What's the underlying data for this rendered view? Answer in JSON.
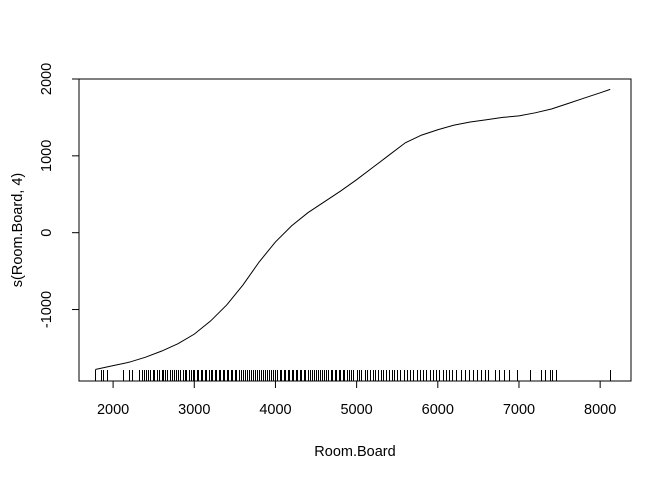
{
  "chart_data": {
    "type": "line",
    "title": "",
    "xlabel": "Room.Board",
    "ylabel": "s(Room.Board, 4)",
    "xlim": [
      1580,
      8380
    ],
    "ylim": [
      -1930,
      2000
    ],
    "x_ticks": [
      2000,
      3000,
      4000,
      5000,
      6000,
      7000,
      8000
    ],
    "x_tick_labels": [
      "2000",
      "3000",
      "4000",
      "5000",
      "6000",
      "7000",
      "8000"
    ],
    "y_ticks": [
      -1000,
      0,
      1000,
      2000
    ],
    "y_tick_labels": [
      "-1000",
      "0",
      "1000",
      "2000"
    ],
    "grid": false,
    "line_color": "#000000",
    "series": [
      {
        "x": [
          1780,
          2000,
          2200,
          2400,
          2600,
          2800,
          3000,
          3200,
          3400,
          3600,
          3800,
          4000,
          4200,
          4400,
          4600,
          4800,
          5000,
          5200,
          5400,
          5600,
          5800,
          6000,
          6200,
          6400,
          6600,
          6800,
          7000,
          7200,
          7400,
          7600,
          7800,
          8000,
          8124
        ],
        "y": [
          -1780,
          -1730,
          -1685,
          -1620,
          -1540,
          -1445,
          -1320,
          -1150,
          -940,
          -680,
          -380,
          -120,
          90,
          260,
          400,
          540,
          690,
          850,
          1010,
          1170,
          1270,
          1340,
          1400,
          1440,
          1470,
          1500,
          1520,
          1560,
          1610,
          1680,
          1750,
          1820,
          1865
        ]
      }
    ],
    "rug": [
      1780,
      1850,
      1870,
      1920,
      2125,
      2190,
      2230,
      2320,
      2350,
      2380,
      2400,
      2430,
      2460,
      2490,
      2510,
      2540,
      2570,
      2600,
      2620,
      2640,
      2670,
      2700,
      2720,
      2750,
      2780,
      2800,
      2830,
      2860,
      2880,
      2900,
      2930,
      2960,
      2980,
      3000,
      3030,
      3050,
      3080,
      3100,
      3130,
      3150,
      3180,
      3200,
      3220,
      3250,
      3270,
      3300,
      3320,
      3350,
      3370,
      3400,
      3420,
      3450,
      3470,
      3500,
      3520,
      3550,
      3570,
      3600,
      3620,
      3650,
      3670,
      3700,
      3720,
      3750,
      3770,
      3800,
      3820,
      3850,
      3870,
      3900,
      3920,
      3950,
      3970,
      4000,
      4020,
      4050,
      4070,
      4100,
      4120,
      4150,
      4170,
      4200,
      4220,
      4250,
      4270,
      4300,
      4320,
      4350,
      4370,
      4400,
      4420,
      4450,
      4470,
      4500,
      4520,
      4550,
      4570,
      4600,
      4620,
      4650,
      4680,
      4700,
      4730,
      4750,
      4780,
      4800,
      4830,
      4850,
      4880,
      4900,
      4930,
      4960,
      5000,
      5030,
      5060,
      5100,
      5130,
      5160,
      5200,
      5230,
      5260,
      5300,
      5330,
      5360,
      5400,
      5430,
      5460,
      5500,
      5540,
      5580,
      5620,
      5660,
      5700,
      5740,
      5780,
      5820,
      5860,
      5900,
      5940,
      5980,
      6020,
      6060,
      6100,
      6140,
      6180,
      6230,
      6280,
      6330,
      6380,
      6430,
      6480,
      6530,
      6580,
      6620,
      6700,
      6760,
      6820,
      6880,
      6980,
      7130,
      7270,
      7320,
      7380,
      7410,
      7450,
      8124
    ]
  }
}
